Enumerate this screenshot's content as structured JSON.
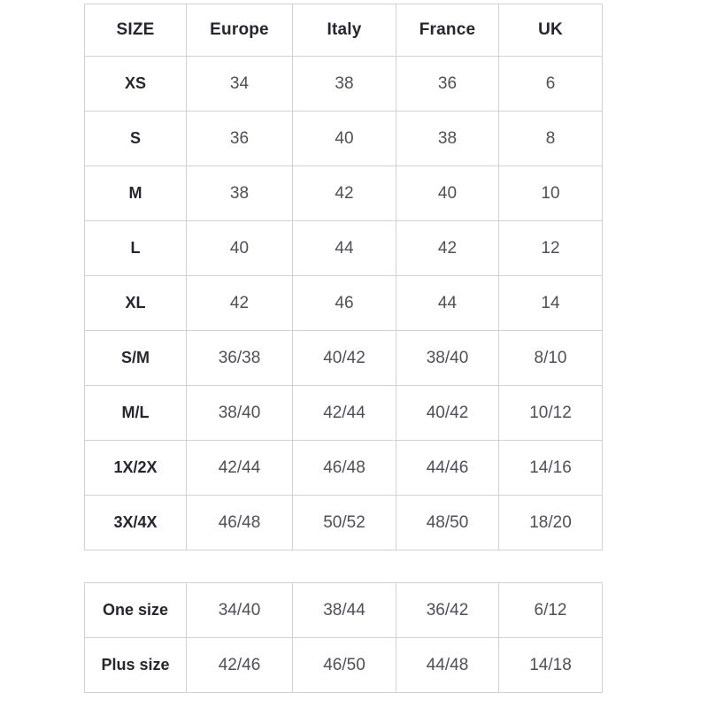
{
  "colors": {
    "background": "#ffffff",
    "border": "#d2d2d2",
    "header_text": "#26262e",
    "cell_text": "#4f4f58"
  },
  "chart_data": {
    "type": "table",
    "columns": [
      "SIZE",
      "Europe",
      "Italy",
      "France",
      "UK"
    ],
    "rows": [
      [
        "XS",
        "34",
        "38",
        "36",
        "6"
      ],
      [
        "S",
        "36",
        "40",
        "38",
        "8"
      ],
      [
        "M",
        "38",
        "42",
        "40",
        "10"
      ],
      [
        "L",
        "40",
        "44",
        "42",
        "12"
      ],
      [
        "XL",
        "42",
        "46",
        "44",
        "14"
      ],
      [
        "S/M",
        "36/38",
        "40/42",
        "38/40",
        "8/10"
      ],
      [
        "M/L",
        "38/40",
        "42/44",
        "40/42",
        "10/12"
      ],
      [
        "1X/2X",
        "42/44",
        "46/48",
        "44/46",
        "14/16"
      ],
      [
        "3X/4X",
        "46/48",
        "50/52",
        "48/50",
        "18/20"
      ]
    ],
    "secondary_rows": [
      [
        "One size",
        "34/40",
        "38/44",
        "36/42",
        "6/12"
      ],
      [
        "Plus size",
        "42/46",
        "46/50",
        "44/48",
        "14/18"
      ]
    ]
  }
}
